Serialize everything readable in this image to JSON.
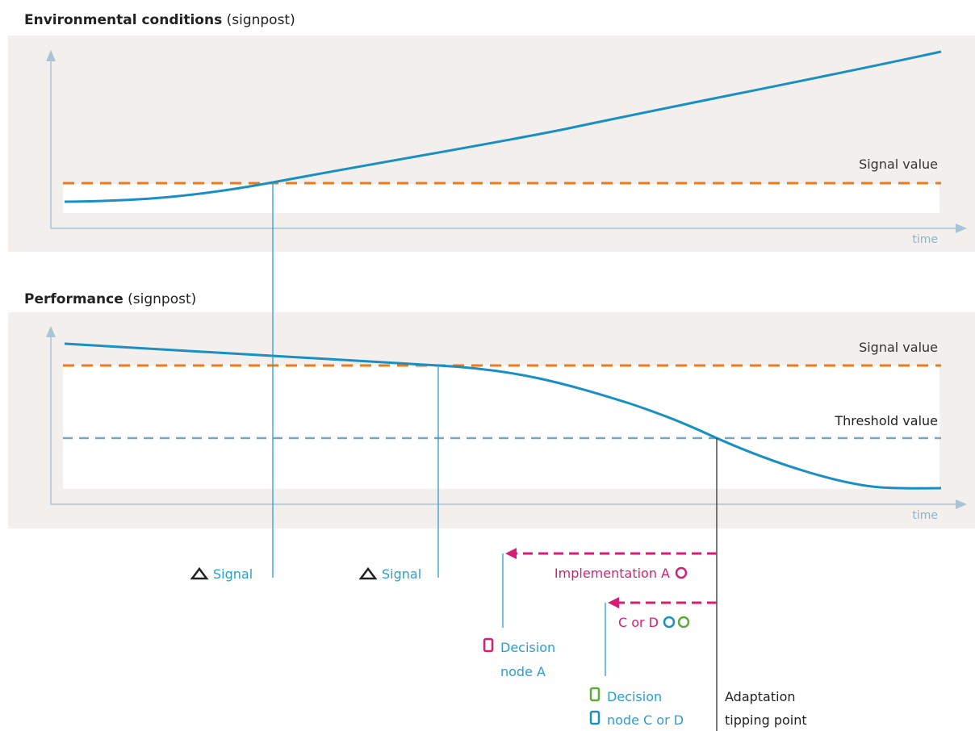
{
  "panel1": {
    "title_bold": "Environmental conditions",
    "title_rest": " (signpost)",
    "signal_label": "Signal value",
    "axis_label": "time"
  },
  "panel2": {
    "title_bold": "Performance",
    "title_rest": " (signpost)",
    "signal_label": "Signal value",
    "threshold_label": "Threshold value",
    "axis_label": "time"
  },
  "bottom": {
    "signal1": "Signal",
    "signal2": "Signal",
    "implementation_a": "Implementation A",
    "c_or_d": "C or D",
    "decision_a_line1": "Decision",
    "decision_a_line2": "node A",
    "decision_cd_line1": "Decision",
    "decision_cd_line2": "node C or D",
    "tipping_line1": "Adaptation",
    "tipping_line2": "tipping point"
  },
  "colors": {
    "panel_bg": "#f2efec",
    "curve": "#1a8fc4",
    "signal_dash": "#ee7a1a",
    "threshold_dash": "#7fa3b8",
    "axis": "#a9c4d6",
    "pink": "#d61f74",
    "green": "#5aab3a",
    "blue": "#1a8fc4"
  }
}
